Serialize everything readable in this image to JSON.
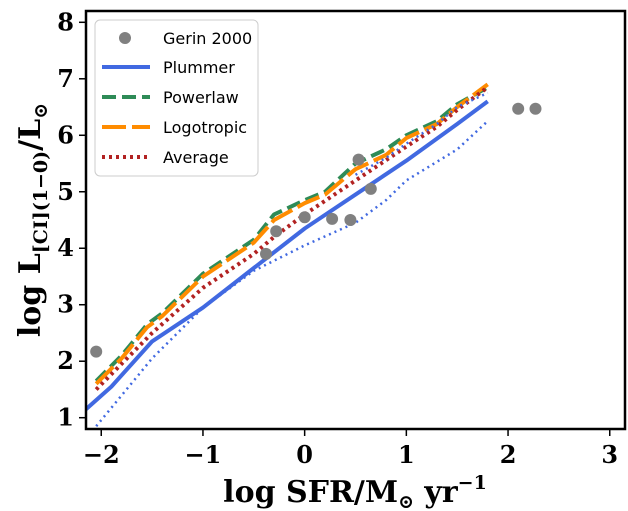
{
  "chart_data": {
    "type": "line",
    "xlabel": "log SFR/M⊙ yr⁻¹",
    "xlabel_parts": {
      "main": "log SFR/M",
      "sub": "⊙",
      "unit": " yr",
      "sup": "−1"
    },
    "ylabel": "log L[CI](1−0)/L⊙",
    "ylabel_parts": {
      "main": "log L",
      "sub": "[CI](1−0)",
      "mid": "/L",
      "sub2": "⊙"
    },
    "xlim": [
      -2.15,
      3.15
    ],
    "ylim": [
      0.8,
      8.2
    ],
    "xticks": [
      -2,
      -1,
      0,
      1,
      2,
      3
    ],
    "xtick_labels": [
      "−2",
      "−1",
      "0",
      "1",
      "2",
      "3"
    ],
    "yticks": [
      1,
      2,
      3,
      4,
      5,
      6,
      7,
      8
    ],
    "ytick_labels": [
      "1",
      "2",
      "3",
      "4",
      "5",
      "6",
      "7",
      "8"
    ],
    "grid": false,
    "legend_position": "top-left",
    "colors": {
      "scatter": "#808080",
      "plummer": "#4169e1",
      "powerlaw": "#2e8b57",
      "logotropic": "#ff8c00",
      "average": "#b22222"
    },
    "scatter": {
      "name": "Gerin 2000",
      "x": [
        -2.05,
        -0.38,
        -0.28,
        0.0,
        0.27,
        0.45,
        0.53,
        0.65,
        2.1,
        2.27
      ],
      "y": [
        2.17,
        3.9,
        4.3,
        4.55,
        4.52,
        4.5,
        5.57,
        5.05,
        6.47,
        6.47
      ]
    },
    "series": [
      {
        "name": "Plummer",
        "x": [
          -2.15,
          -1.9,
          -1.5,
          -1.0,
          -0.5,
          0.0,
          0.5,
          1.0,
          1.5,
          1.8
        ],
        "y": [
          1.15,
          1.55,
          2.35,
          2.95,
          3.65,
          4.35,
          4.95,
          5.55,
          6.2,
          6.6
        ]
      },
      {
        "name": "Powerlaw",
        "x": [
          -2.05,
          -1.8,
          -1.55,
          -1.4,
          -1.0,
          -0.5,
          -0.3,
          0.0,
          0.2,
          0.5,
          0.8,
          1.0,
          1.3,
          1.5,
          1.8
        ],
        "y": [
          1.65,
          2.1,
          2.65,
          2.85,
          3.55,
          4.15,
          4.6,
          4.85,
          5.0,
          5.5,
          5.75,
          6.0,
          6.25,
          6.55,
          6.85
        ]
      },
      {
        "name": "Logotropic",
        "x": [
          -2.05,
          -1.8,
          -1.55,
          -1.4,
          -1.0,
          -0.5,
          -0.3,
          0.0,
          0.2,
          0.5,
          0.8,
          1.0,
          1.3,
          1.5,
          1.8
        ],
        "y": [
          1.6,
          2.05,
          2.6,
          2.8,
          3.5,
          4.1,
          4.5,
          4.8,
          4.95,
          5.4,
          5.65,
          5.95,
          6.2,
          6.5,
          6.9
        ]
      },
      {
        "name": "Average",
        "x": [
          -2.05,
          -1.5,
          -1.0,
          -0.5,
          -0.3,
          0.0,
          0.5,
          1.0,
          1.3,
          1.5,
          1.8
        ],
        "y": [
          1.5,
          2.5,
          3.3,
          3.9,
          4.2,
          4.6,
          5.2,
          5.8,
          6.15,
          6.45,
          6.85
        ]
      },
      {
        "name": "",
        "x": [
          -2.05,
          -1.5,
          -1.0,
          -0.5,
          0.0,
          0.5,
          0.8,
          1.0,
          1.5,
          1.8
        ],
        "y": [
          0.85,
          2.05,
          2.95,
          3.6,
          4.05,
          4.45,
          4.85,
          5.2,
          5.75,
          6.25
        ]
      },
      {
        "name": "",
        "x": [
          0.5,
          0.8,
          1.0,
          1.3,
          1.5,
          1.8
        ],
        "y": [
          5.3,
          5.6,
          5.85,
          6.2,
          6.5,
          6.75
        ]
      }
    ]
  }
}
